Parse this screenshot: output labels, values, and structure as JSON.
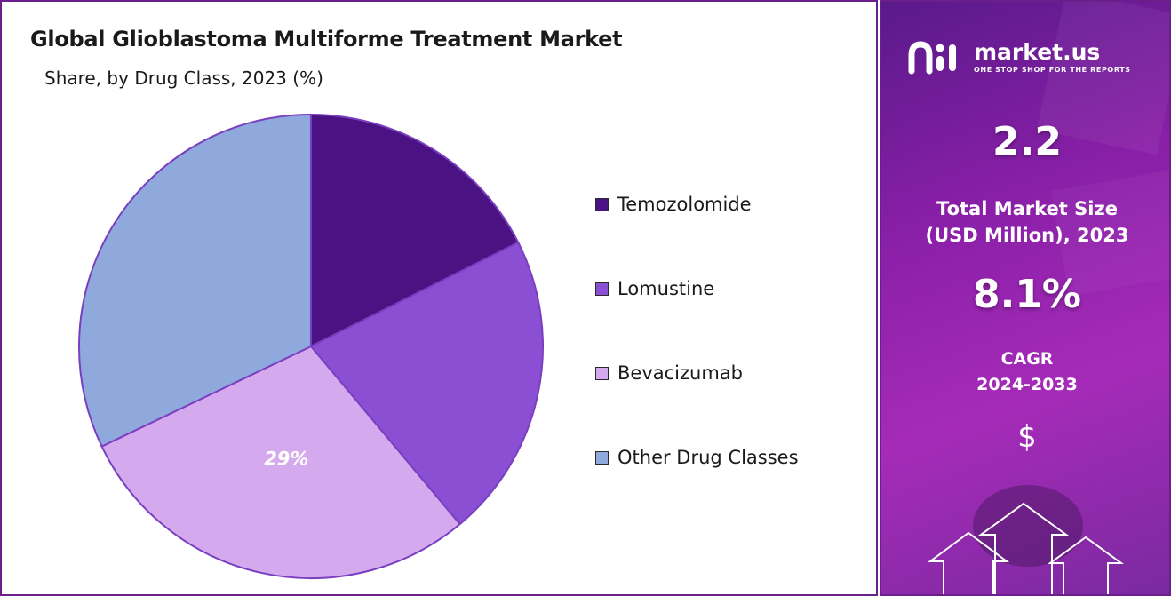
{
  "chart_data": {
    "type": "pie",
    "title": "Global Glioblastoma Multiforme Treatment Market",
    "subtitle": "Share, by Drug Class, 2023 (%)",
    "categories": [
      "Temozolomide",
      "Lomustine",
      "Bevacizumab",
      "Other Drug Classes"
    ],
    "values": [
      17.6,
      21.3,
      29,
      32.1
    ],
    "colors": [
      "#4b1283",
      "#8a4fd2",
      "#d4a9ee",
      "#8fa9dd"
    ],
    "data_labels": [
      "",
      "",
      "29%",
      ""
    ],
    "legend_position": "right"
  },
  "side_panel": {
    "brand_name": "market.us",
    "tagline": "ONE STOP SHOP FOR THE REPORTS",
    "market_size_value": "2.2",
    "market_size_label_line1": "Total Market Size",
    "market_size_label_line2": "(USD Million), 2023",
    "cagr_value": "8.1%",
    "cagr_label_line1": "CAGR",
    "cagr_label_line2": "2024-2033",
    "currency_symbol": "$"
  }
}
